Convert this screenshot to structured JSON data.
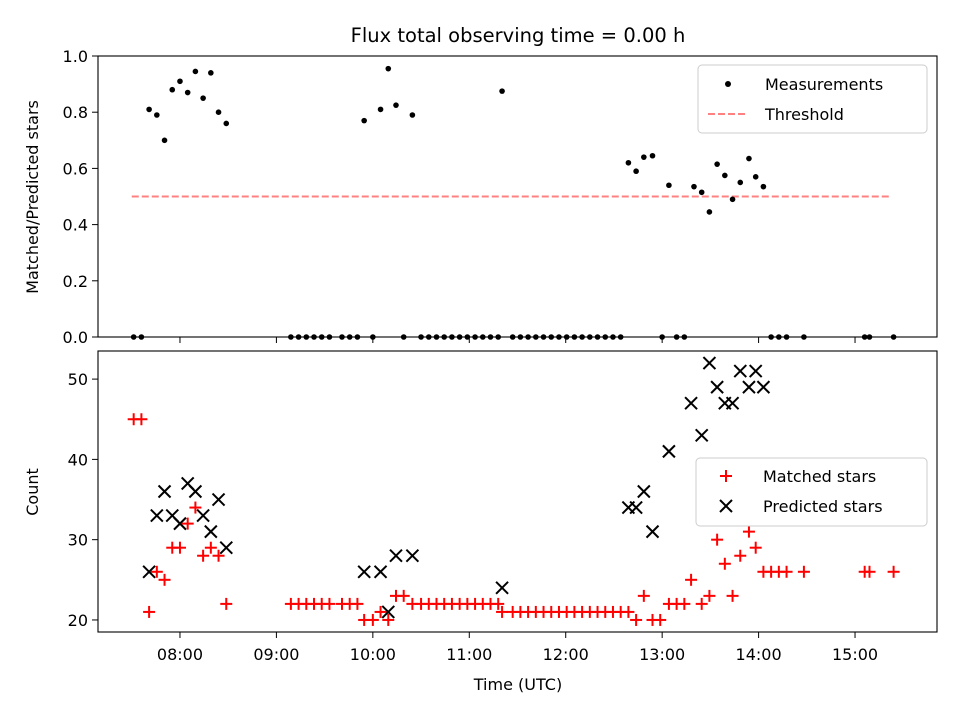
{
  "chart_data": [
    {
      "type": "scatter",
      "title": "Flux total observing time = 0.00 h",
      "ylabel": "Matched/Predicted stars",
      "xlabel": "",
      "xlim": [
        7.15,
        15.85
      ],
      "ylim": [
        0,
        1.0
      ],
      "yticks": [
        0.0,
        0.2,
        0.4,
        0.6,
        0.8,
        1.0
      ],
      "ytick_labels": [
        "0.0",
        "0.2",
        "0.4",
        "0.6",
        "0.8",
        "1.0"
      ],
      "xticks": [
        8,
        9,
        10,
        11,
        12,
        13,
        14,
        15
      ],
      "legend_position": "top-right",
      "legend": [
        "Measurements",
        "Threshold"
      ],
      "threshold": {
        "name": "Threshold",
        "value": 0.5,
        "x_range": [
          7.5,
          15.35
        ],
        "color": "#ff8080"
      },
      "series": [
        {
          "name": "Measurements",
          "marker": "dot",
          "color": "#000000",
          "points": [
            [
              7.52,
              0.0
            ],
            [
              7.6,
              0.0
            ],
            [
              7.68,
              0.81
            ],
            [
              7.76,
              0.79
            ],
            [
              7.84,
              0.7
            ],
            [
              7.92,
              0.88
            ],
            [
              8.0,
              0.91
            ],
            [
              8.08,
              0.87
            ],
            [
              8.16,
              0.945
            ],
            [
              8.24,
              0.85
            ],
            [
              8.32,
              0.94
            ],
            [
              8.4,
              0.8
            ],
            [
              8.48,
              0.76
            ],
            [
              9.15,
              0.0
            ],
            [
              9.23,
              0.0
            ],
            [
              9.31,
              0.0
            ],
            [
              9.39,
              0.0
            ],
            [
              9.47,
              0.0
            ],
            [
              9.55,
              0.0
            ],
            [
              9.68,
              0.0
            ],
            [
              9.76,
              0.0
            ],
            [
              9.84,
              0.0
            ],
            [
              9.91,
              0.77
            ],
            [
              10.0,
              0.0
            ],
            [
              10.08,
              0.81
            ],
            [
              10.16,
              0.955
            ],
            [
              10.24,
              0.825
            ],
            [
              10.32,
              0.0
            ],
            [
              10.41,
              0.79
            ],
            [
              10.5,
              0.0
            ],
            [
              10.58,
              0.0
            ],
            [
              10.66,
              0.0
            ],
            [
              10.74,
              0.0
            ],
            [
              10.82,
              0.0
            ],
            [
              10.9,
              0.0
            ],
            [
              10.98,
              0.0
            ],
            [
              11.06,
              0.0
            ],
            [
              11.14,
              0.0
            ],
            [
              11.22,
              0.0
            ],
            [
              11.3,
              0.0
            ],
            [
              11.34,
              0.875
            ],
            [
              11.45,
              0.0
            ],
            [
              11.53,
              0.0
            ],
            [
              11.61,
              0.0
            ],
            [
              11.69,
              0.0
            ],
            [
              11.77,
              0.0
            ],
            [
              11.85,
              0.0
            ],
            [
              11.93,
              0.0
            ],
            [
              12.01,
              0.0
            ],
            [
              12.09,
              0.0
            ],
            [
              12.17,
              0.0
            ],
            [
              12.25,
              0.0
            ],
            [
              12.33,
              0.0
            ],
            [
              12.41,
              0.0
            ],
            [
              12.49,
              0.0
            ],
            [
              12.57,
              0.0
            ],
            [
              12.65,
              0.62
            ],
            [
              12.73,
              0.59
            ],
            [
              12.81,
              0.64
            ],
            [
              12.9,
              0.645
            ],
            [
              13.0,
              0.0
            ],
            [
              13.07,
              0.54
            ],
            [
              13.15,
              0.0
            ],
            [
              13.23,
              0.0
            ],
            [
              13.33,
              0.535
            ],
            [
              13.41,
              0.515
            ],
            [
              13.49,
              0.445
            ],
            [
              13.57,
              0.615
            ],
            [
              13.65,
              0.575
            ],
            [
              13.73,
              0.49
            ],
            [
              13.81,
              0.55
            ],
            [
              13.9,
              0.635
            ],
            [
              13.97,
              0.57
            ],
            [
              14.05,
              0.535
            ],
            [
              14.13,
              0.0
            ],
            [
              14.21,
              0.0
            ],
            [
              14.29,
              0.0
            ],
            [
              14.47,
              0.0
            ],
            [
              15.1,
              0.0
            ],
            [
              15.15,
              0.0
            ],
            [
              15.4,
              0.0
            ]
          ]
        }
      ]
    },
    {
      "type": "scatter",
      "title": "",
      "ylabel": "Count",
      "xlabel": "Time (UTC)",
      "xlim": [
        7.15,
        15.85
      ],
      "ylim": [
        18.5,
        53.5
      ],
      "yticks": [
        20,
        30,
        40,
        50
      ],
      "ytick_labels": [
        "20",
        "30",
        "40",
        "50"
      ],
      "xticks": [
        8,
        9,
        10,
        11,
        12,
        13,
        14,
        15
      ],
      "xtick_labels": [
        "08:00",
        "09:00",
        "10:00",
        "11:00",
        "12:00",
        "13:00",
        "14:00",
        "15:00"
      ],
      "legend_position": "center-right",
      "legend": [
        "Matched stars",
        "Predicted stars"
      ],
      "series": [
        {
          "name": "Matched stars",
          "marker": "plus",
          "color": "#ff0000",
          "points": [
            [
              7.52,
              45
            ],
            [
              7.6,
              45
            ],
            [
              7.68,
              21
            ],
            [
              7.76,
              26
            ],
            [
              7.84,
              25
            ],
            [
              7.92,
              29
            ],
            [
              8.0,
              29
            ],
            [
              8.08,
              32
            ],
            [
              8.16,
              34
            ],
            [
              8.24,
              28
            ],
            [
              8.32,
              29
            ],
            [
              8.4,
              28
            ],
            [
              8.48,
              22
            ],
            [
              9.15,
              22
            ],
            [
              9.23,
              22
            ],
            [
              9.31,
              22
            ],
            [
              9.39,
              22
            ],
            [
              9.47,
              22
            ],
            [
              9.55,
              22
            ],
            [
              9.68,
              22
            ],
            [
              9.76,
              22
            ],
            [
              9.84,
              22
            ],
            [
              9.91,
              20
            ],
            [
              10.0,
              20
            ],
            [
              10.08,
              21
            ],
            [
              10.16,
              20
            ],
            [
              10.24,
              23
            ],
            [
              10.32,
              23
            ],
            [
              10.41,
              22
            ],
            [
              10.5,
              22
            ],
            [
              10.58,
              22
            ],
            [
              10.66,
              22
            ],
            [
              10.74,
              22
            ],
            [
              10.82,
              22
            ],
            [
              10.9,
              22
            ],
            [
              10.98,
              22
            ],
            [
              11.06,
              22
            ],
            [
              11.14,
              22
            ],
            [
              11.22,
              22
            ],
            [
              11.3,
              22
            ],
            [
              11.34,
              21
            ],
            [
              11.45,
              21
            ],
            [
              11.53,
              21
            ],
            [
              11.61,
              21
            ],
            [
              11.69,
              21
            ],
            [
              11.77,
              21
            ],
            [
              11.85,
              21
            ],
            [
              11.93,
              21
            ],
            [
              12.01,
              21
            ],
            [
              12.09,
              21
            ],
            [
              12.17,
              21
            ],
            [
              12.25,
              21
            ],
            [
              12.33,
              21
            ],
            [
              12.41,
              21
            ],
            [
              12.49,
              21
            ],
            [
              12.57,
              21
            ],
            [
              12.65,
              21
            ],
            [
              12.73,
              20
            ],
            [
              12.81,
              23
            ],
            [
              12.9,
              20
            ],
            [
              12.98,
              20
            ],
            [
              13.07,
              22
            ],
            [
              13.15,
              22
            ],
            [
              13.23,
              22
            ],
            [
              13.3,
              25
            ],
            [
              13.41,
              22
            ],
            [
              13.49,
              23
            ],
            [
              13.57,
              30
            ],
            [
              13.65,
              27
            ],
            [
              13.73,
              23
            ],
            [
              13.81,
              28
            ],
            [
              13.9,
              31
            ],
            [
              13.97,
              29
            ],
            [
              14.05,
              26
            ],
            [
              14.13,
              26
            ],
            [
              14.21,
              26
            ],
            [
              14.29,
              26
            ],
            [
              14.47,
              26
            ],
            [
              15.1,
              26
            ],
            [
              15.15,
              26
            ],
            [
              15.4,
              26
            ]
          ]
        },
        {
          "name": "Predicted stars",
          "marker": "x",
          "color": "#000000",
          "points": [
            [
              7.68,
              26
            ],
            [
              7.76,
              33
            ],
            [
              7.84,
              36
            ],
            [
              7.92,
              33
            ],
            [
              8.0,
              32
            ],
            [
              8.08,
              37
            ],
            [
              8.16,
              36
            ],
            [
              8.24,
              33
            ],
            [
              8.32,
              31
            ],
            [
              8.4,
              35
            ],
            [
              8.48,
              29
            ],
            [
              9.91,
              26
            ],
            [
              10.08,
              26
            ],
            [
              10.16,
              21
            ],
            [
              10.24,
              28
            ],
            [
              10.41,
              28
            ],
            [
              11.34,
              24
            ],
            [
              12.65,
              34
            ],
            [
              12.73,
              34
            ],
            [
              12.81,
              36
            ],
            [
              12.9,
              31
            ],
            [
              13.07,
              41
            ],
            [
              13.3,
              47
            ],
            [
              13.41,
              43
            ],
            [
              13.49,
              52
            ],
            [
              13.57,
              49
            ],
            [
              13.65,
              47
            ],
            [
              13.73,
              47
            ],
            [
              13.81,
              51
            ],
            [
              13.9,
              49
            ],
            [
              13.97,
              51
            ],
            [
              14.05,
              49
            ]
          ]
        }
      ]
    }
  ]
}
